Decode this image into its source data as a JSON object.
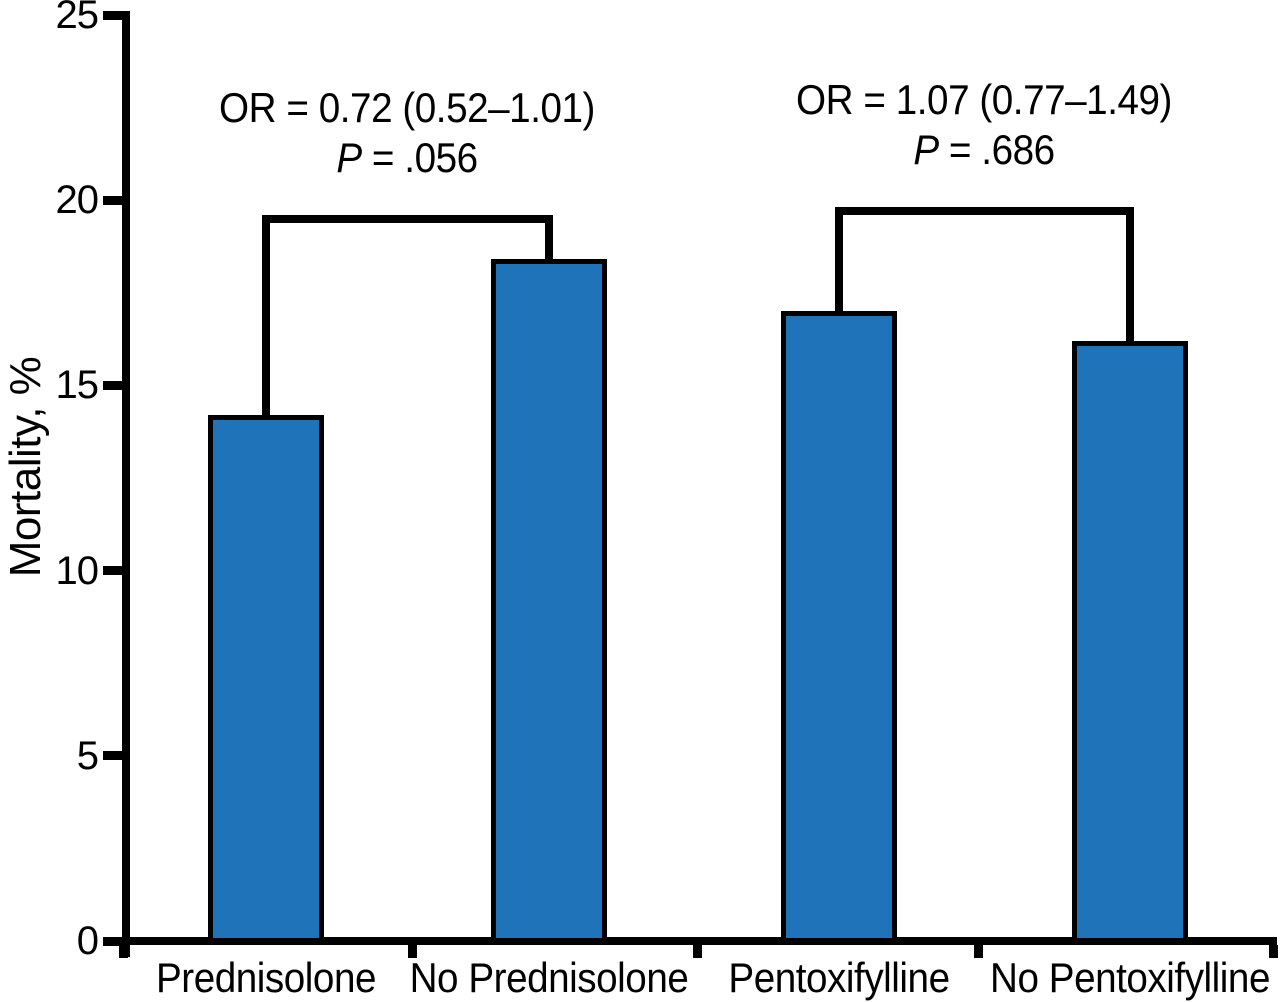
{
  "figure": {
    "background": "#ffffff",
    "axis_color": "#000000",
    "text_color": "#000000"
  },
  "chart_data": {
    "type": "bar",
    "title": "",
    "xlabel": "",
    "ylabel": "Mortality, %",
    "ylim": [
      0,
      25
    ],
    "yticks": [
      0,
      5,
      10,
      15,
      20,
      25
    ],
    "grid": false,
    "legend": false,
    "categories": [
      "Prednisolone",
      "No Prednisolone",
      "Pentoxifylline",
      "No Pentoxifylline"
    ],
    "values": [
      14.2,
      18.4,
      17.0,
      16.2
    ],
    "bar_fill": "#1f73b8",
    "bar_stroke": "#000000",
    "comparisons": [
      {
        "between": [
          "Prednisolone",
          "No Prednisolone"
        ],
        "or_text": "OR = 0.72 (0.52–1.01)",
        "p_text": "P = .056",
        "bracket_level": 19.5
      },
      {
        "between": [
          "Pentoxifylline",
          "No Pentoxifylline"
        ],
        "or_text": "OR = 1.07 (0.77–1.49)",
        "p_text": "P = .686",
        "bracket_level": 19.7
      }
    ]
  }
}
